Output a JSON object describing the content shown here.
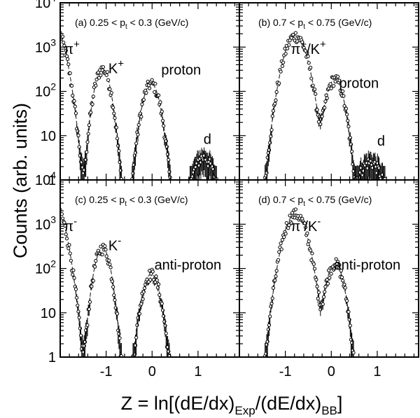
{
  "chart_data": {
    "type": "scatter",
    "ylabel": "Counts (arb. units)",
    "xlabel": {
      "main": "Z = ln[(dE/dx)",
      "sub1": "Exp",
      "mid": "/(dE/dx)",
      "sub2": "BB",
      "end": "]"
    },
    "xlim": [
      -2.0,
      1.9
    ],
    "ylim": [
      1,
      10000
    ],
    "yscale": "log",
    "xticks": [
      "-1",
      "0",
      "1"
    ],
    "yticks": [
      "1",
      "10",
      "10",
      "10",
      "10"
    ],
    "ytick_exponents": [
      "",
      "",
      "2",
      "3",
      "4"
    ],
    "panels": [
      {
        "label": "(a)",
        "header": {
          "pre": "(a) 0.25 < p",
          "sub": "t",
          "post": " < 0.3 (GeV/c)"
        },
        "species": [
          {
            "name": "π",
            "charge": "+",
            "x": -1.92,
            "y": 700
          },
          {
            "name": "K",
            "charge": "+",
            "x": -0.95,
            "y": 260
          },
          {
            "name": "proton",
            "charge": "",
            "x": 0.2,
            "y": 240
          },
          {
            "name": "d",
            "charge": "",
            "x": 1.12,
            "y": 6.5
          }
        ],
        "peaks": [
          {
            "mu": -2.15,
            "sigma": 0.16,
            "amp": 3000
          },
          {
            "mu": -1.08,
            "sigma": 0.12,
            "amp": 320
          },
          {
            "mu": -0.02,
            "sigma": 0.13,
            "amp": 150
          },
          {
            "mu": 1.12,
            "sigma": 0.17,
            "amp": 3.2
          }
        ]
      },
      {
        "label": "(b)",
        "header": {
          "pre": "(b) 0.7 < p",
          "sub": "t",
          "post": " < 0.75 (GeV/c)"
        },
        "species": [
          {
            "name": "π",
            "charge": "+",
            "x": -0.88,
            "y": 700,
            "slash": "/K",
            "charge2": "+"
          },
          {
            "name": "proton",
            "charge": "",
            "x": 0.17,
            "y": 120
          },
          {
            "name": "d",
            "charge": "",
            "x": 1.0,
            "y": 6.0
          }
        ],
        "peaks": [
          {
            "mu": -0.78,
            "sigma": 0.17,
            "amp": 1800
          },
          {
            "mu": 0.08,
            "sigma": 0.13,
            "amp": 190
          },
          {
            "mu": 0.85,
            "sigma": 0.2,
            "amp": 2.5
          }
        ]
      },
      {
        "label": "(c)",
        "header": {
          "pre": "(c) 0.25 < p",
          "sub": "t",
          "post": " < 0.3 (GeV/c)"
        },
        "species": [
          {
            "name": "π",
            "charge": "-",
            "x": -1.92,
            "y": 700
          },
          {
            "name": "K",
            "charge": "-",
            "x": -0.95,
            "y": 260
          },
          {
            "name": "anti-proton",
            "charge": "",
            "x": 0.05,
            "y": 95
          }
        ],
        "peaks": [
          {
            "mu": -2.15,
            "sigma": 0.16,
            "amp": 3000
          },
          {
            "mu": -1.08,
            "sigma": 0.12,
            "amp": 290
          },
          {
            "mu": -0.02,
            "sigma": 0.13,
            "amp": 75
          }
        ]
      },
      {
        "label": "(d)",
        "header": {
          "pre": "(d)  0.7 < p",
          "sub": "t",
          "post": " < 0.75 (GeV/c)"
        },
        "species": [
          {
            "name": "π",
            "charge": "-",
            "x": -0.88,
            "y": 700,
            "slash": "/K",
            "charge2": "-"
          },
          {
            "name": "anti-proton",
            "charge": "",
            "x": 0.05,
            "y": 95
          }
        ],
        "peaks": [
          {
            "mu": -0.78,
            "sigma": 0.17,
            "amp": 1700
          },
          {
            "mu": 0.08,
            "sigma": 0.13,
            "amp": 130
          }
        ]
      }
    ]
  }
}
